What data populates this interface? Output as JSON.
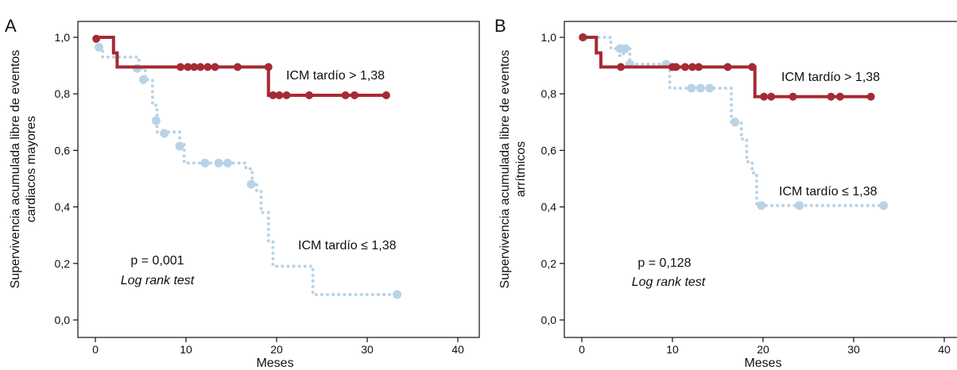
{
  "chart_data": [
    {
      "type": "line",
      "panel_letter": "A",
      "ylabel": [
        "Supervivencia acumulada libre de eventos",
        "cardiacos mayores"
      ],
      "xlabel": "Meses",
      "xlim": [
        0,
        40
      ],
      "ylim": [
        0,
        1
      ],
      "xticks": [
        "0",
        "10",
        "20",
        "30",
        "40"
      ],
      "yticks": [
        "0,0",
        "0,2",
        "0,4",
        "0,6",
        "0,8",
        "1,0"
      ],
      "pvalue_text": "p = 0,001",
      "test_text": "Log rank test",
      "series": [
        {
          "name": "ICM tardío > 1,38",
          "color": "#a52a33",
          "style": "solid",
          "step_x": [
            0,
            2,
            2.4,
            19.1,
            40
          ],
          "step_y": [
            1.0,
            0.945,
            0.895,
            0.795,
            0.795
          ],
          "end_x": 32.2,
          "censored": [
            [
              0.1,
              0.995
            ],
            [
              9.4,
              0.895
            ],
            [
              10.2,
              0.895
            ],
            [
              10.9,
              0.895
            ],
            [
              11.6,
              0.895
            ],
            [
              12.4,
              0.895
            ],
            [
              13.2,
              0.895
            ],
            [
              15.7,
              0.895
            ],
            [
              19.1,
              0.895
            ],
            [
              19.6,
              0.795
            ],
            [
              20.3,
              0.795
            ],
            [
              21.1,
              0.795
            ],
            [
              23.6,
              0.795
            ],
            [
              27.6,
              0.795
            ],
            [
              28.6,
              0.795
            ],
            [
              32.1,
              0.795
            ]
          ]
        },
        {
          "name": "ICM tardío ≤ 1,38",
          "color": "#b9d3e6",
          "style": "dotted",
          "step_x": [
            0,
            0.3,
            0.8,
            4.8,
            5.5,
            6.3,
            6.8,
            9.3,
            9.8,
            16.6,
            17.3,
            17.8,
            18.3,
            19.1,
            19.6,
            24,
            40
          ],
          "step_y": [
            0.985,
            0.965,
            0.93,
            0.89,
            0.85,
            0.76,
            0.665,
            0.625,
            0.555,
            0.535,
            0.48,
            0.455,
            0.38,
            0.28,
            0.19,
            0.09,
            0.09
          ],
          "end_x": 33.4,
          "censored": [
            [
              0.4,
              0.965
            ],
            [
              4.6,
              0.89
            ],
            [
              5.3,
              0.85
            ],
            [
              6.7,
              0.705
            ],
            [
              7.6,
              0.66
            ],
            [
              9.3,
              0.615
            ],
            [
              12.1,
              0.555
            ],
            [
              13.6,
              0.555
            ],
            [
              14.6,
              0.555
            ],
            [
              17.2,
              0.48
            ],
            [
              33.3,
              0.09
            ]
          ]
        }
      ],
      "annotations": {
        "upper_label": "ICM tardío > 1,38",
        "lower_label": "ICM tardío ≤ 1,38"
      }
    },
    {
      "type": "line",
      "panel_letter": "B",
      "ylabel": [
        "Supervivencia acumulada libre de eventos",
        "arrítmicos"
      ],
      "xlabel": "Meses",
      "xlim": [
        0,
        40
      ],
      "ylim": [
        0,
        1
      ],
      "xticks": [
        "0",
        "10",
        "20",
        "30",
        "40"
      ],
      "yticks": [
        "0,0",
        "0,2",
        "0,4",
        "0,6",
        "0,8",
        "1,0"
      ],
      "pvalue_text": "p = 0,128",
      "test_text": "Log rank test",
      "series": [
        {
          "name": "ICM tardío > 1,38",
          "color": "#a52a33",
          "style": "solid",
          "step_x": [
            0,
            1.6,
            2.1,
            19.1,
            40
          ],
          "step_y": [
            1.0,
            0.945,
            0.895,
            0.79,
            0.79
          ],
          "end_x": 32.1,
          "censored": [
            [
              0.1,
              1.0
            ],
            [
              4.3,
              0.895
            ],
            [
              10,
              0.895
            ],
            [
              10.4,
              0.895
            ],
            [
              11.4,
              0.895
            ],
            [
              12.2,
              0.895
            ],
            [
              12.9,
              0.895
            ],
            [
              16.1,
              0.895
            ],
            [
              18.8,
              0.895
            ],
            [
              20.1,
              0.79
            ],
            [
              20.9,
              0.79
            ],
            [
              23.3,
              0.79
            ],
            [
              27.5,
              0.79
            ],
            [
              28.5,
              0.79
            ],
            [
              31.9,
              0.79
            ]
          ]
        },
        {
          "name": "ICM tardío ≤ 1,38",
          "color": "#b9d3e6",
          "style": "dotted",
          "step_x": [
            0,
            3.2,
            4.1,
            4.6,
            5.3,
            9.1,
            9.7,
            16.1,
            16.5,
            17.1,
            17.6,
            18.2,
            18.8,
            19.3,
            40
          ],
          "step_y": [
            1.0,
            0.96,
            0.935,
            0.96,
            0.905,
            0.905,
            0.82,
            0.82,
            0.7,
            0.7,
            0.64,
            0.56,
            0.52,
            0.405,
            0.405
          ],
          "end_x": 33.3,
          "censored": [
            [
              0.2,
              1.0
            ],
            [
              4.2,
              0.96
            ],
            [
              4.8,
              0.96
            ],
            [
              5.3,
              0.905
            ],
            [
              9.3,
              0.905
            ],
            [
              12.1,
              0.82
            ],
            [
              13.1,
              0.82
            ],
            [
              14.1,
              0.82
            ],
            [
              16.9,
              0.7
            ],
            [
              19.8,
              0.405
            ],
            [
              24,
              0.405
            ],
            [
              33.3,
              0.405
            ]
          ]
        }
      ],
      "annotations": {
        "upper_label": "ICM tardío > 1,38",
        "lower_label": "ICM tardío ≤ 1,38"
      }
    }
  ]
}
